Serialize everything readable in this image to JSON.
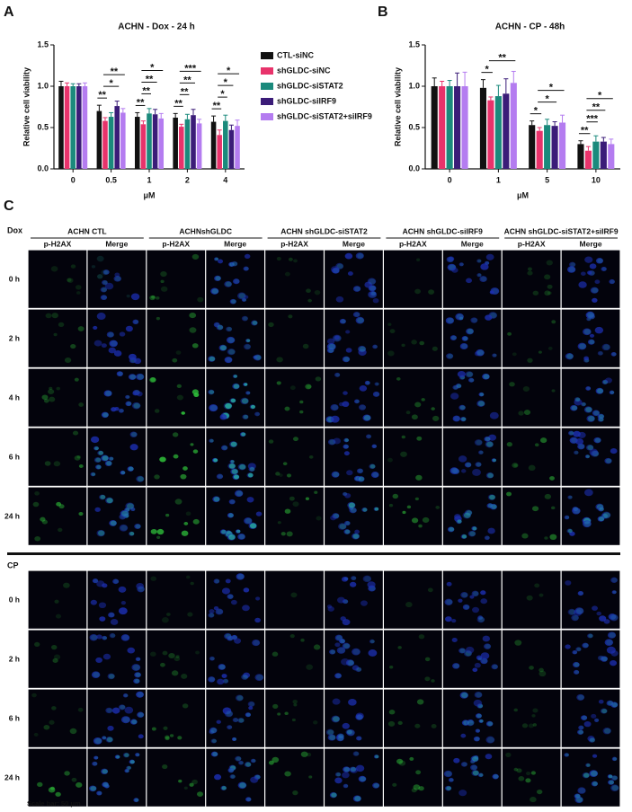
{
  "panel_labels": [
    "A",
    "B",
    "C"
  ],
  "chart_data": [
    {
      "type": "bar",
      "title": "ACHN - Dox - 24 h",
      "x_label": "μM",
      "y_label": "Relative cell viability",
      "categories": [
        "0",
        "0.5",
        "1",
        "2",
        "4"
      ],
      "ylim": [
        0,
        1.5
      ],
      "yticks": [
        {
          "value": 0,
          "label": "0.0"
        },
        {
          "value": 0.5,
          "label": "0.5"
        },
        {
          "value": 1,
          "label": "1.0"
        },
        {
          "value": 1.5,
          "label": "1.5"
        }
      ],
      "legend": "right",
      "series": [
        {
          "name": "CTL-siNC",
          "color": "#111111",
          "values": [
            1.0,
            0.7,
            0.63,
            0.62,
            0.57
          ],
          "errors": [
            0.06,
            0.07,
            0.05,
            0.05,
            0.07
          ]
        },
        {
          "name": "shGLDC-siNC",
          "color": "#e8336b",
          "values": [
            1.0,
            0.58,
            0.54,
            0.51,
            0.41
          ],
          "errors": [
            0.04,
            0.04,
            0.04,
            0.03,
            0.06
          ]
        },
        {
          "name": "shGLDC-siSTAT2",
          "color": "#1b8a7c",
          "values": [
            1.0,
            0.63,
            0.67,
            0.6,
            0.58
          ],
          "errors": [
            0.03,
            0.05,
            0.06,
            0.06,
            0.07
          ]
        },
        {
          "name": "shGLDC-siIRF9",
          "color": "#3b1c78",
          "values": [
            1.0,
            0.76,
            0.66,
            0.65,
            0.47
          ],
          "errors": [
            0.03,
            0.06,
            0.06,
            0.07,
            0.06
          ]
        },
        {
          "name": "shGLDC-siSTAT2+siIRF9",
          "color": "#b47cf0",
          "values": [
            1.0,
            0.68,
            0.61,
            0.55,
            0.52
          ],
          "errors": [
            0.04,
            0.05,
            0.06,
            0.05,
            0.07
          ]
        }
      ],
      "annotations": [
        {
          "text": "**",
          "category": "0.5",
          "series": [
            "CTL-siNC",
            "shGLDC-siNC"
          ]
        },
        {
          "text": "*",
          "category": "0.5",
          "series": [
            "shGLDC-siNC",
            "shGLDC-siIRF9"
          ]
        },
        {
          "text": "**",
          "category": "0.5",
          "series": [
            "shGLDC-siNC",
            "shGLDC-siSTAT2+siIRF9"
          ]
        },
        {
          "text": "**",
          "category": "1",
          "series": [
            "CTL-siNC",
            "shGLDC-siNC"
          ]
        },
        {
          "text": "**",
          "category": "1",
          "series": [
            "shGLDC-siNC",
            "shGLDC-siSTAT2"
          ]
        },
        {
          "text": "**",
          "category": "1",
          "series": [
            "shGLDC-siNC",
            "shGLDC-siIRF9"
          ]
        },
        {
          "text": "*",
          "category": "1",
          "series": [
            "shGLDC-siNC",
            "shGLDC-siSTAT2+siIRF9"
          ]
        },
        {
          "text": "**",
          "category": "2",
          "series": [
            "CTL-siNC",
            "shGLDC-siNC"
          ]
        },
        {
          "text": "**",
          "category": "2",
          "series": [
            "shGLDC-siNC",
            "shGLDC-siSTAT2"
          ]
        },
        {
          "text": "**",
          "category": "2",
          "series": [
            "shGLDC-siNC",
            "shGLDC-siIRF9"
          ]
        },
        {
          "text": "***",
          "category": "2",
          "series": [
            "shGLDC-siNC",
            "shGLDC-siSTAT2+siIRF9"
          ]
        },
        {
          "text": "**",
          "category": "4",
          "series": [
            "CTL-siNC",
            "shGLDC-siNC"
          ]
        },
        {
          "text": "*",
          "category": "4",
          "series": [
            "shGLDC-siNC",
            "shGLDC-siSTAT2"
          ]
        },
        {
          "text": "*",
          "category": "4",
          "series": [
            "shGLDC-siNC",
            "shGLDC-siIRF9"
          ]
        },
        {
          "text": "*",
          "category": "4",
          "series": [
            "shGLDC-siNC",
            "shGLDC-siSTAT2+siIRF9"
          ]
        }
      ]
    },
    {
      "type": "bar",
      "title": "ACHN - CP - 48h",
      "x_label": "μM",
      "y_label": "Relative cell viability",
      "categories": [
        "0",
        "1",
        "5",
        "10"
      ],
      "ylim": [
        0,
        1.5
      ],
      "yticks": [
        {
          "value": 0,
          "label": "0.0"
        },
        {
          "value": 0.5,
          "label": "0.5"
        },
        {
          "value": 1,
          "label": "1.0"
        },
        {
          "value": 1.5,
          "label": "1.5"
        }
      ],
      "series": [
        {
          "name": "CTL-siNC",
          "color": "#111111",
          "values": [
            1.0,
            0.98,
            0.53,
            0.3
          ],
          "errors": [
            0.1,
            0.1,
            0.05,
            0.04
          ]
        },
        {
          "name": "shGLDC-siNC",
          "color": "#e8336b",
          "values": [
            1.0,
            0.83,
            0.46,
            0.22
          ],
          "errors": [
            0.06,
            0.04,
            0.04,
            0.05
          ]
        },
        {
          "name": "shGLDC-siSTAT2",
          "color": "#1b8a7c",
          "values": [
            1.0,
            0.88,
            0.53,
            0.33
          ],
          "errors": [
            0.07,
            0.13,
            0.07,
            0.07
          ]
        },
        {
          "name": "shGLDC-siIRF9",
          "color": "#3b1c78",
          "values": [
            1.0,
            0.91,
            0.52,
            0.33
          ],
          "errors": [
            0.16,
            0.18,
            0.05,
            0.05
          ]
        },
        {
          "name": "shGLDC-siSTAT2+siIRF9",
          "color": "#b47cf0",
          "values": [
            1.0,
            1.04,
            0.56,
            0.3
          ],
          "errors": [
            0.17,
            0.14,
            0.09,
            0.06
          ]
        }
      ],
      "annotations": [
        {
          "text": "*",
          "category": "1",
          "series": [
            "CTL-siNC",
            "shGLDC-siNC"
          ]
        },
        {
          "text": "**",
          "category": "1",
          "series": [
            "shGLDC-siNC",
            "shGLDC-siSTAT2+siIRF9"
          ]
        },
        {
          "text": "*",
          "category": "5",
          "series": [
            "CTL-siNC",
            "shGLDC-siNC"
          ]
        },
        {
          "text": "*",
          "category": "5",
          "series": [
            "shGLDC-siNC",
            "shGLDC-siIRF9"
          ]
        },
        {
          "text": "*",
          "category": "5",
          "series": [
            "shGLDC-siNC",
            "shGLDC-siSTAT2+siIRF9"
          ]
        },
        {
          "text": "**",
          "category": "10",
          "series": [
            "CTL-siNC",
            "shGLDC-siNC"
          ]
        },
        {
          "text": "***",
          "category": "10",
          "series": [
            "shGLDC-siNC",
            "shGLDC-siSTAT2"
          ]
        },
        {
          "text": "**",
          "category": "10",
          "series": [
            "shGLDC-siNC",
            "shGLDC-siIRF9"
          ]
        },
        {
          "text": "*",
          "category": "10",
          "series": [
            "shGLDC-siNC",
            "shGLDC-siSTAT2+siIRF9"
          ]
        }
      ]
    }
  ],
  "panel_c": {
    "groups": [
      "ACHN CTL",
      "ACHNshGLDC",
      "ACHN shGLDC-siSTAT2",
      "ACHN shGLDC-siIRF9",
      "ACHN shGLDC-siSTAT2+siIRF9"
    ],
    "channel_headers": [
      "p-H2AX",
      "Merge",
      "p-H2AX",
      "Merge",
      "p-H2AX",
      "Merge",
      "p-H2AX",
      "Merge",
      "p-H2AX",
      "Merge"
    ],
    "sections": [
      {
        "label": "Dox",
        "rows": [
          "0 h",
          "2 h",
          "4 h",
          "6 h",
          "24 h"
        ]
      },
      {
        "label": "CP",
        "rows": [
          "0 h",
          "2 h",
          "6 h",
          "24 h"
        ]
      }
    ],
    "scale_bar": "Scale bar: 50 μm"
  }
}
